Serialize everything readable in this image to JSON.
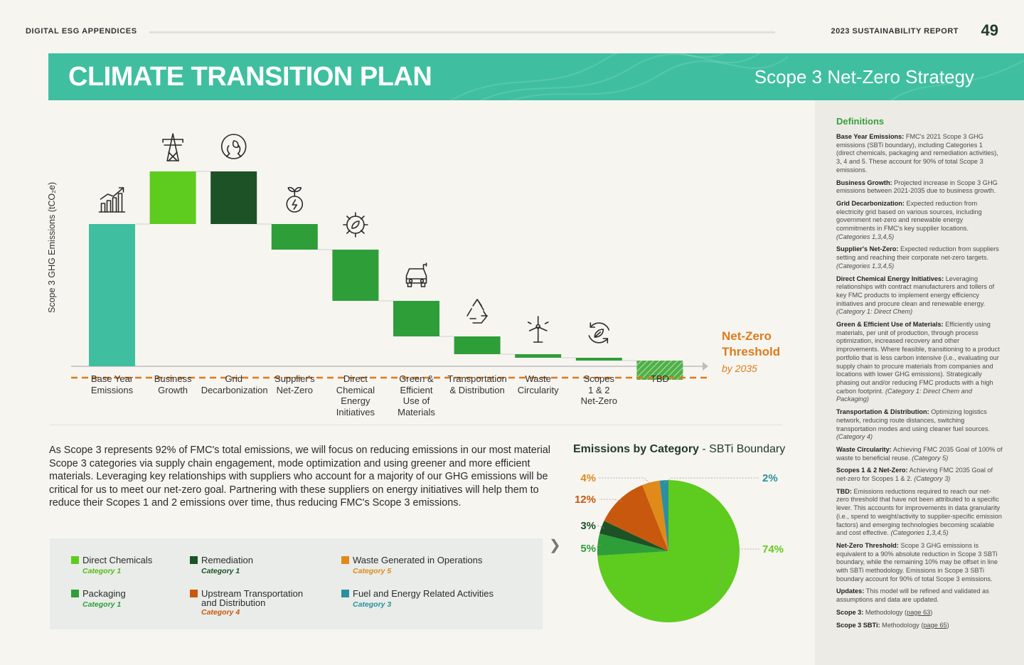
{
  "header": {
    "left": "DIGITAL ESG APPENDICES",
    "right": "2023 SUSTAINABILITY REPORT",
    "page": "49"
  },
  "banner": {
    "title": "CLIMATE TRANSITION PLAN",
    "subtitle": "Scope 3 Net-Zero Strategy"
  },
  "chart_data": {
    "type": "waterfall",
    "ylabel": "Scope 3 GHG Emissions (tCO2e)",
    "ylabel_display": "Scope 3 GHG Emissions (tCO₂e)",
    "categories": [
      "Base Year Emissions",
      "Business Growth",
      "Grid Decarbonization",
      "Supplier's Net-Zero",
      "Direct Chemical Energy Initiatives",
      "Green & Efficient Use of Materials",
      "Transportation & Distribution",
      "Waste Circularity",
      "Scopes 1 & 2 Net-Zero",
      "TBD"
    ],
    "category_lines": [
      [
        "Base Year",
        "Emissions"
      ],
      [
        "Business",
        "Growth"
      ],
      [
        "Grid",
        "Decarbonization"
      ],
      [
        "Supplier's",
        "Net-Zero"
      ],
      [
        "Direct",
        "Chemical",
        "Energy",
        "Initiatives"
      ],
      [
        "Green &",
        "Efficient",
        "Use of",
        "Materials"
      ],
      [
        "Transportation",
        "& Distribution"
      ],
      [
        "Waste",
        "Circularity"
      ],
      [
        "Scopes",
        "1 & 2",
        "Net-Zero"
      ],
      [
        "TBD"
      ]
    ],
    "bars": [
      {
        "start": 0,
        "end": 100
      },
      {
        "start": 100,
        "end": 137
      },
      {
        "start": 137,
        "end": 100
      },
      {
        "start": 100,
        "end": 82
      },
      {
        "start": 82,
        "end": 46
      },
      {
        "start": 46,
        "end": 21
      },
      {
        "start": 21,
        "end": 8.5
      },
      {
        "start": 8.5,
        "end": 6
      },
      {
        "start": 6,
        "end": 4
      },
      {
        "start": 4,
        "end": -9.5
      }
    ],
    "bar_colors": [
      "#3fbfa0",
      "#5ecb1f",
      "#1c5226",
      "#2e9e39",
      "#2e9e39",
      "#2e9e39",
      "#2e9e39",
      "#2e9e39",
      "#2e9e39",
      "#2e9e39"
    ],
    "threshold": {
      "value": -8,
      "label_lines": [
        "Net-Zero",
        "Threshold"
      ],
      "sub": "by 2035",
      "color": "#dd7a1c"
    },
    "icons": [
      "growth-chart-icon",
      "transmission-tower-icon",
      "hands-leaf-icon",
      "energy-sprout-icon",
      "gear-leaf-icon",
      "electric-vehicle-icon",
      "recycle-icon",
      "wind-turbine-icon",
      "renew-leaf-icon",
      ""
    ],
    "ylim": [
      -16,
      150
    ]
  },
  "body_text": "As Scope 3 represents 92% of FMC's total emissions, we will focus on reducing emissions in our most material Scope 3 categories via supply chain engagement, mode optimization and using greener and more efficient materials. Leveraging key relationships with suppliers who account for a majority of our GHG emissions will be critical for us to meet our net-zero goal. Partnering with these suppliers on energy initiatives will help them to reduce their Scopes 1 and 2 emissions over time, thus reducing FMC's Scope 3 emissions.",
  "legend": [
    {
      "name": "Direct Chemicals",
      "category": "Category 1",
      "color": "#5ecb1f",
      "catcolor": "#58b81c"
    },
    {
      "name": "Remediation",
      "category": "Category 1",
      "color": "#1c5226",
      "catcolor": "#1c5226"
    },
    {
      "name": "Waste Generated in Operations",
      "category": "Category 5",
      "color": "#e08a1a",
      "catcolor": "#e08a1a"
    },
    {
      "name": "Packaging",
      "category": "Category 1",
      "color": "#2e9e39",
      "catcolor": "#2e9e39"
    },
    {
      "name": "Upstream Transportation and Distribution",
      "name_lines": [
        "Upstream Transportation",
        "and Distribution"
      ],
      "category": "Category 4",
      "color": "#c8580e",
      "catcolor": "#c8580e"
    },
    {
      "name": "Fuel and Energy Related Activities",
      "category": "Category 3",
      "color": "#2c8fa0",
      "catcolor": "#2c8fa0"
    }
  ],
  "pie": {
    "title_bold": "Emissions by Category",
    "title_rest": " - SBTi Boundary",
    "chart_data": {
      "type": "pie",
      "slices": [
        {
          "label": "Direct Chemicals",
          "value": 74,
          "text": "74%",
          "color": "#5ecb1f"
        },
        {
          "label": "Packaging",
          "value": 5,
          "text": "5%",
          "color": "#2e9e39"
        },
        {
          "label": "Remediation",
          "value": 3,
          "text": "3%",
          "color": "#1c5226"
        },
        {
          "label": "Upstream Transportation and Distribution",
          "value": 12,
          "text": "12%",
          "color": "#c8580e"
        },
        {
          "label": "Waste Generated in Operations",
          "value": 4,
          "text": "4%",
          "color": "#e08a1a"
        },
        {
          "label": "Fuel and Energy Related Activities",
          "value": 2,
          "text": "2%",
          "color": "#2c8fa0"
        }
      ]
    }
  },
  "definitions": {
    "title": "Definitions",
    "items": [
      {
        "term": "Base Year Emissions:",
        "text": " FMC's 2021 Scope 3 GHG emissions (SBTi boundary), including Categories 1 (direct chemicals, packaging and remediation activities), 3, 4 and 5. These account for 90% of total Scope 3 emissions.",
        "note": ""
      },
      {
        "term": "Business Growth:",
        "text": " Projected increase in Scope 3 GHG emissions between 2021-2035 due to business growth.",
        "note": ""
      },
      {
        "term": "Grid Decarbonization:",
        "text": " Expected reduction from electricity grid based on various sources, including government net-zero and renewable energy commitments in FMC's key supplier locations. ",
        "note": "(Categories 1,3,4,5)"
      },
      {
        "term": "Supplier's Net-Zero:",
        "text": " Expected reduction from suppliers setting and reaching their corporate net-zero targets. ",
        "note": "(Categories 1,3,4,5)"
      },
      {
        "term": "Direct Chemical Energy Initiatives:",
        "text": " Leveraging relationships with contract manufacturers and tollers of key FMC products to implement energy efficiency initiatives and procure clean and renewable energy. ",
        "note": "(Category 1: Direct Chem)"
      },
      {
        "term": "Green & Efficient Use of Materials:",
        "text": " Efficiently using materials, per unit of production, through process optimization, increased recovery and other improvements. Where feasible, transitioning to a product portfolio that is less carbon intensive (i.e., evaluating our supply chain to procure materials from companies and locations with lower GHG emissions). Strategically phasing out and/or reducing FMC products with a high carbon footprint. ",
        "note": "(Category 1: Direct Chem and Packaging)"
      },
      {
        "term": "Transportation & Distribution:",
        "text": " Optimizing logistics network, reducing route distances, switching transportation modes and using cleaner fuel sources. ",
        "note": "(Category 4)"
      },
      {
        "term": "Waste Circularity:",
        "text": " Achieving FMC 2035 Goal of 100% of waste to beneficial reuse. ",
        "note": "(Category 5)"
      },
      {
        "term": "Scopes 1 & 2 Net-Zero:",
        "text": " Achieving FMC 2035 Goal of net-zero for Scopes 1 & 2. ",
        "note": "(Category 3)"
      },
      {
        "term": "TBD:",
        "text": " Emissions reductions required to reach our net-zero threshold that have not been attributed to a specific lever. This accounts for improvements in data granularity (i.e., spend to weight/activity to supplier-specific emission factors) and emerging technologies becoming scalable and cost effective. ",
        "note": "(Categories 1,3,4,5)"
      },
      {
        "term": "Net-Zero Threshold:",
        "text": " Scope 3 GHG emissions is equivalent to a 90% absolute reduction in Scope 3 SBTi boundary, while the remaining 10% may be offset in line with SBTi methodology. Emissions in Scope 3 SBTi boundary account for 90% of total Scope 3 emissions.",
        "note": ""
      },
      {
        "term": "Updates:",
        "text": " This model will be refined and validated as assumptions and data are updated.",
        "note": ""
      },
      {
        "term": "Scope 3:",
        "text": " Methodology (",
        "link": "page 63",
        "after": ")"
      },
      {
        "term": "Scope 3 SBTi:",
        "text": " Methodology (",
        "link": "page 65",
        "after": ")"
      }
    ]
  }
}
